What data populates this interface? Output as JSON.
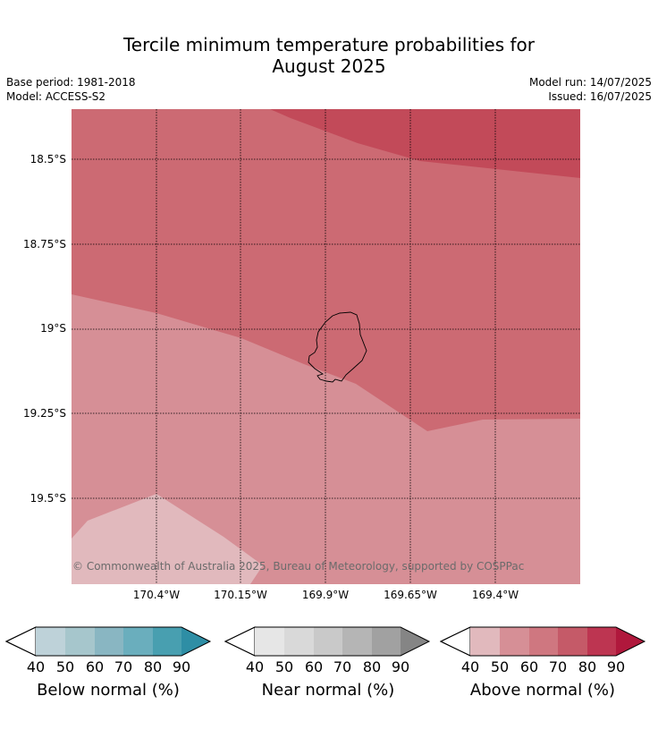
{
  "title_line1": "Tercile minimum temperature probabilities for",
  "title_line2": "August 2025",
  "meta": {
    "base_period": "Base period: 1981-2018",
    "model": "Model: ACCESS-S2",
    "model_run": "Model run: 14/07/2025",
    "issued": "Issued: 16/07/2025"
  },
  "map": {
    "lat_labels": [
      "18.5°S",
      "18.75°S",
      "19°S",
      "19.25°S",
      "19.5°S"
    ],
    "lon_labels": [
      "170.4°W",
      "170.15°W",
      "169.9°W",
      "169.65°W",
      "169.4°W"
    ],
    "copyright": "© Commonwealth of Australia 2025, Bureau of Meteorology, supported by COSPPac",
    "colors": {
      "above_40_50": "#e1b9bd",
      "above_50_60": "#d68f96",
      "above_60_70": "#cc6a73",
      "above_70_80": "#c24a59"
    }
  },
  "legends": [
    {
      "label": "Below normal (%)",
      "colors": [
        "#bed2d9",
        "#a6c6cc",
        "#89b6c2",
        "#6aaebd",
        "#489fb0",
        "#2e8ea5"
      ]
    },
    {
      "label": "Near normal (%)",
      "colors": [
        "#e6e6e6",
        "#d9d9d9",
        "#c9c9c9",
        "#b5b5b5",
        "#a1a1a1",
        "#858585"
      ]
    },
    {
      "label": "Above normal (%)",
      "colors": [
        "#e1b9bd",
        "#d68f96",
        "#cf7780",
        "#c55a68",
        "#bd3551",
        "#b0183c"
      ]
    }
  ],
  "ticks": [
    "40",
    "50",
    "60",
    "70",
    "80",
    "90"
  ]
}
